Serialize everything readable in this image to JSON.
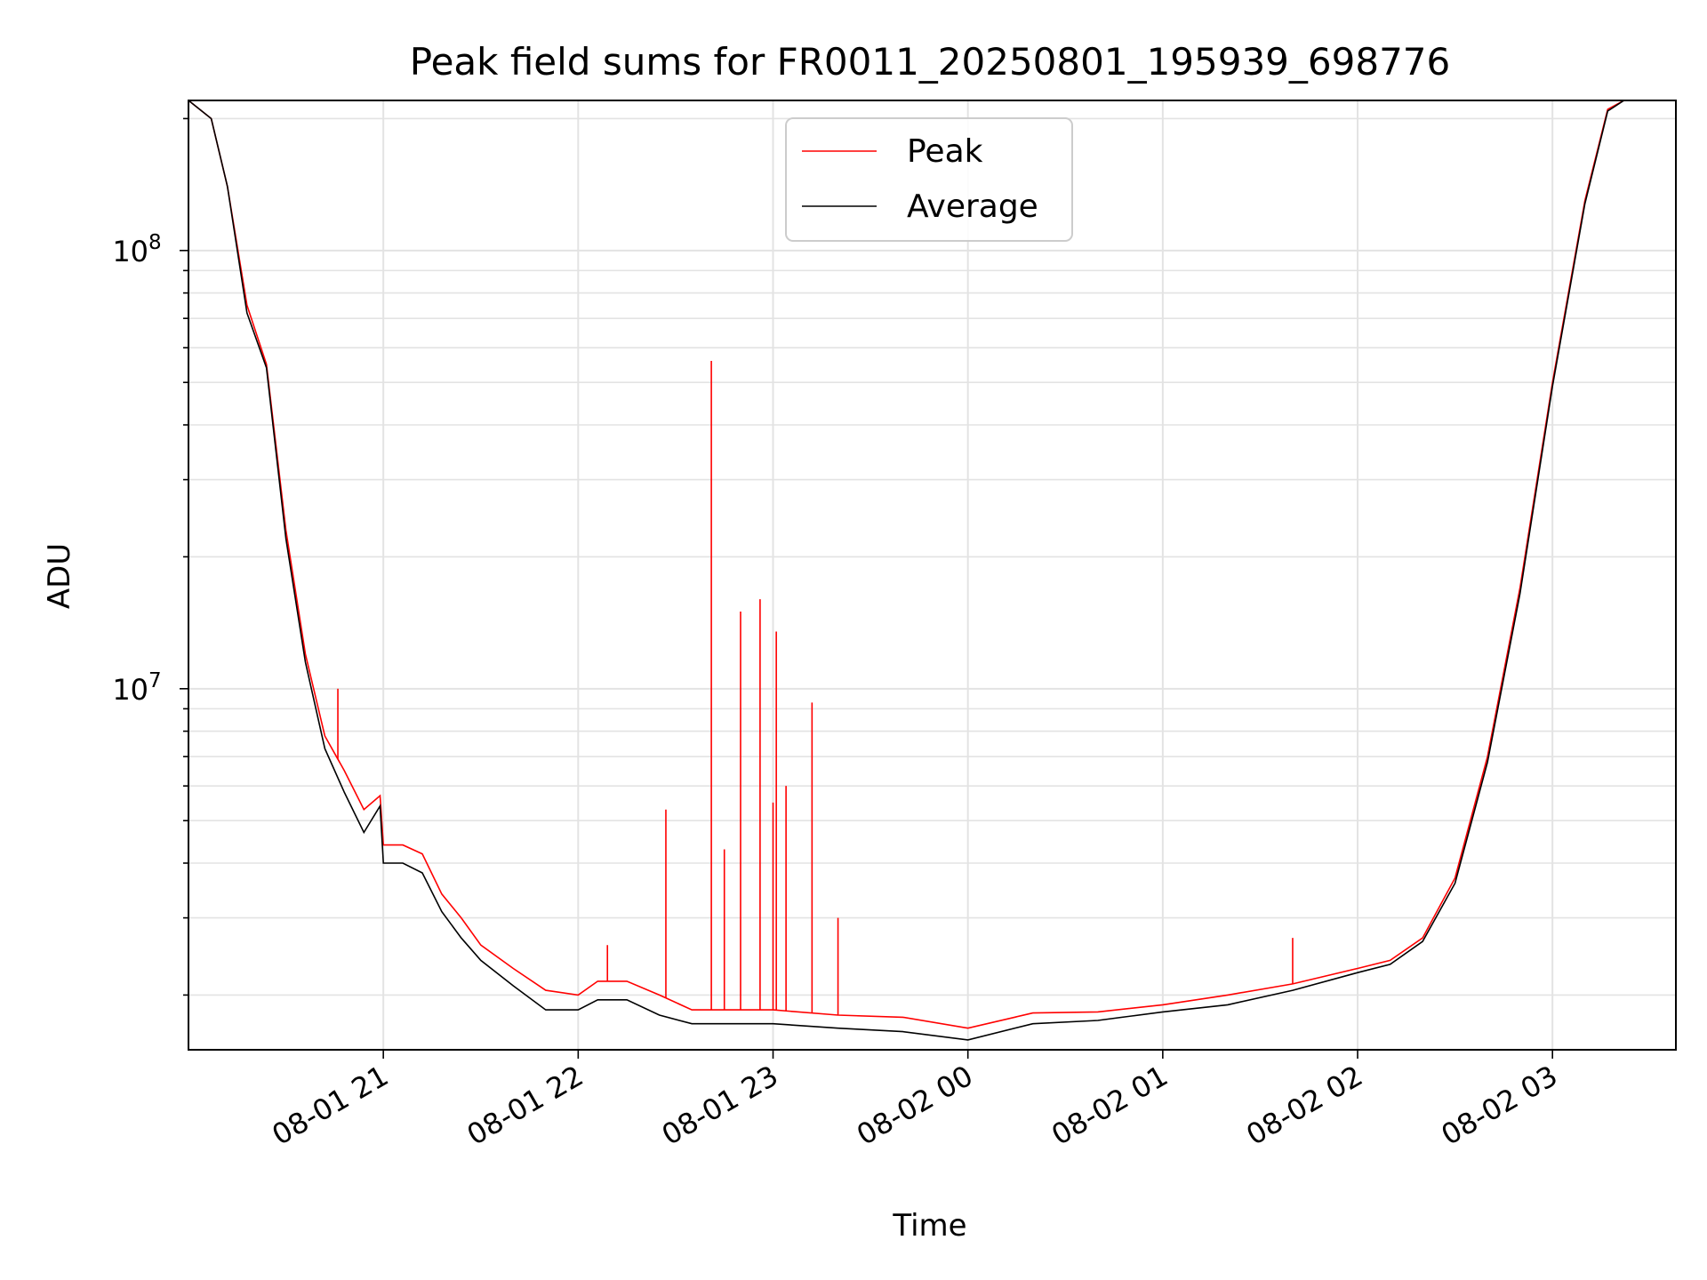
{
  "chart_data": {
    "type": "line",
    "title": "Peak field sums for FR0011_20250801_195939_698776",
    "xlabel": "Time",
    "ylabel": "ADU",
    "y_scale": "log",
    "ylim": [
      1500000,
      220000000
    ],
    "xlim": [
      "2025-08-01 20:00",
      "2025-08-02 03:38"
    ],
    "x_ticks": [
      "08-01 21",
      "08-01 22",
      "08-01 23",
      "08-02 00",
      "08-02 01",
      "08-02 02",
      "08-02 03"
    ],
    "y_ticks": [
      "10^8",
      "10^7"
    ],
    "grid": true,
    "legend_position": "upper center",
    "series": [
      {
        "name": "Peak",
        "color": "#ff0000",
        "x": [
          "2025-08-01 20:00",
          "2025-08-01 20:07",
          "2025-08-01 20:12",
          "2025-08-01 20:18",
          "2025-08-01 20:24",
          "2025-08-01 20:30",
          "2025-08-01 20:36",
          "2025-08-01 20:42",
          "2025-08-01 20:48",
          "2025-08-01 20:54",
          "2025-08-01 20:59",
          "2025-08-01 21:00",
          "2025-08-01 21:06",
          "2025-08-01 21:12",
          "2025-08-01 21:18",
          "2025-08-01 21:24",
          "2025-08-01 21:30",
          "2025-08-01 21:40",
          "2025-08-01 21:50",
          "2025-08-01 22:00",
          "2025-08-01 22:06",
          "2025-08-01 22:15",
          "2025-08-01 22:25",
          "2025-08-01 22:35",
          "2025-08-01 22:45",
          "2025-08-01 23:00",
          "2025-08-01 23:20",
          "2025-08-01 23:40",
          "2025-08-02 00:00",
          "2025-08-02 00:20",
          "2025-08-02 00:40",
          "2025-08-02 01:00",
          "2025-08-02 01:20",
          "2025-08-02 01:40",
          "2025-08-02 02:00",
          "2025-08-02 02:10",
          "2025-08-02 02:20",
          "2025-08-02 02:30",
          "2025-08-02 02:40",
          "2025-08-02 02:50",
          "2025-08-02 03:00",
          "2025-08-02 03:10",
          "2025-08-02 03:17",
          "2025-08-02 03:22"
        ],
        "y": [
          220000000,
          200000000,
          140000000,
          75000000,
          55000000,
          23000000,
          12000000,
          7800000,
          6500000,
          5300000,
          5700000,
          4400000,
          4400000,
          4200000,
          3400000,
          3000000,
          2600000,
          2300000,
          2050000,
          2000000,
          2150000,
          2150000,
          2000000,
          1850000,
          1850000,
          1850000,
          1800000,
          1780000,
          1680000,
          1820000,
          1830000,
          1900000,
          2000000,
          2120000,
          2300000,
          2400000,
          2700000,
          3700000,
          7000000,
          17000000,
          50000000,
          130000000,
          210000000,
          220000000
        ]
      },
      {
        "name": "Average",
        "color": "#000000",
        "x": [
          "2025-08-01 20:00",
          "2025-08-01 20:07",
          "2025-08-01 20:12",
          "2025-08-01 20:18",
          "2025-08-01 20:24",
          "2025-08-01 20:30",
          "2025-08-01 20:36",
          "2025-08-01 20:42",
          "2025-08-01 20:48",
          "2025-08-01 20:54",
          "2025-08-01 20:59",
          "2025-08-01 21:00",
          "2025-08-01 21:06",
          "2025-08-01 21:12",
          "2025-08-01 21:18",
          "2025-08-01 21:24",
          "2025-08-01 21:30",
          "2025-08-01 21:40",
          "2025-08-01 21:50",
          "2025-08-01 22:00",
          "2025-08-01 22:06",
          "2025-08-01 22:15",
          "2025-08-01 22:25",
          "2025-08-01 22:35",
          "2025-08-01 22:45",
          "2025-08-01 23:00",
          "2025-08-01 23:20",
          "2025-08-01 23:40",
          "2025-08-02 00:00",
          "2025-08-02 00:20",
          "2025-08-02 00:40",
          "2025-08-02 01:00",
          "2025-08-02 01:20",
          "2025-08-02 01:40",
          "2025-08-02 02:00",
          "2025-08-02 02:10",
          "2025-08-02 02:20",
          "2025-08-02 02:30",
          "2025-08-02 02:40",
          "2025-08-02 02:50",
          "2025-08-02 03:00",
          "2025-08-02 03:10",
          "2025-08-02 03:17",
          "2025-08-02 03:22"
        ],
        "y": [
          220000000,
          200000000,
          140000000,
          72000000,
          54000000,
          22000000,
          11500000,
          7300000,
          5800000,
          4700000,
          5400000,
          4000000,
          4000000,
          3800000,
          3100000,
          2700000,
          2400000,
          2100000,
          1850000,
          1850000,
          1950000,
          1950000,
          1800000,
          1720000,
          1720000,
          1720000,
          1680000,
          1650000,
          1580000,
          1720000,
          1750000,
          1830000,
          1900000,
          2050000,
          2250000,
          2350000,
          2650000,
          3600000,
          6800000,
          16500000,
          49000000,
          128000000,
          208000000,
          220000000
        ]
      }
    ],
    "spikes": [
      {
        "series": "Peak",
        "x": "2025-08-01 20:46",
        "y": 10000000
      },
      {
        "series": "Peak",
        "x": "2025-08-01 22:09",
        "y": 2600000
      },
      {
        "series": "Peak",
        "x": "2025-08-01 22:27",
        "y": 5300000
      },
      {
        "series": "Peak",
        "x": "2025-08-01 22:41",
        "y": 56000000
      },
      {
        "series": "Peak",
        "x": "2025-08-01 22:45",
        "y": 4300000
      },
      {
        "series": "Peak",
        "x": "2025-08-01 22:50",
        "y": 15000000
      },
      {
        "series": "Peak",
        "x": "2025-08-01 22:56",
        "y": 16000000
      },
      {
        "series": "Peak",
        "x": "2025-08-01 23:00",
        "y": 5500000
      },
      {
        "series": "Peak",
        "x": "2025-08-01 23:01",
        "y": 13500000
      },
      {
        "series": "Peak",
        "x": "2025-08-01 23:04",
        "y": 6000000
      },
      {
        "series": "Peak",
        "x": "2025-08-01 23:12",
        "y": 9300000
      },
      {
        "series": "Peak",
        "x": "2025-08-01 23:20",
        "y": 3000000
      },
      {
        "series": "Peak",
        "x": "2025-08-02 01:40",
        "y": 2700000
      }
    ]
  }
}
